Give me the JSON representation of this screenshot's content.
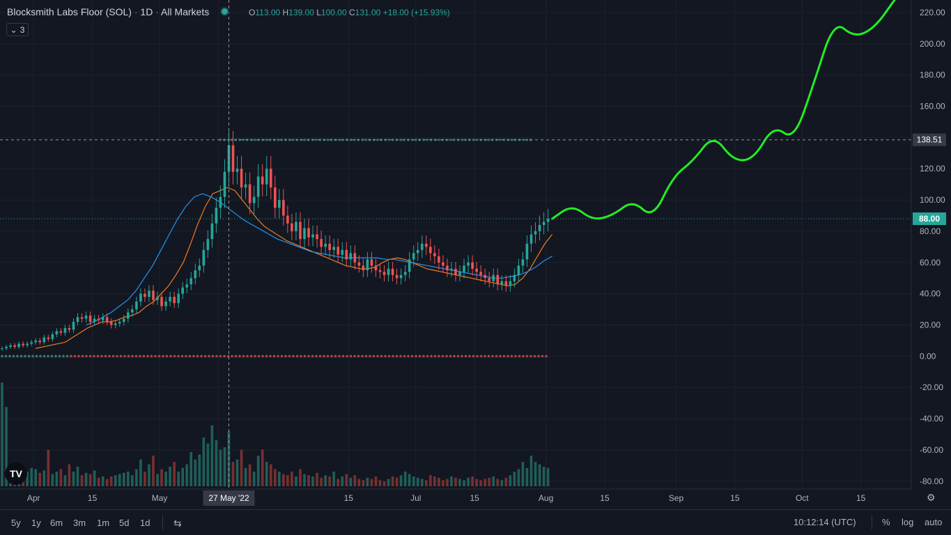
{
  "legend": {
    "title": "Blocksmith Labs Floor (SOL)",
    "interval": "1D",
    "source": "All Markets",
    "o_label": "O",
    "o": "113.00",
    "h_label": "H",
    "h": "139.00",
    "l_label": "L",
    "l": "100.00",
    "c_label": "C",
    "c": "131.00",
    "change": "+18.00 (+15.93%)",
    "indicator_count": "3"
  },
  "price_labels": {
    "crosshair": "138.51",
    "last": "88.00"
  },
  "crosshair_date": "27 May '22",
  "timeframes": [
    "5y",
    "1y",
    "6m",
    "3m",
    "1m",
    "5d",
    "1d"
  ],
  "status": {
    "clock": "10:12:14 (UTC)",
    "percent": "%",
    "log": "log",
    "auto": "auto"
  },
  "colors": {
    "up": "#26a69a",
    "down": "#ef5350",
    "ma_fast": "#f57c1f",
    "ma_slow": "#2196f3",
    "projection": "#22ee22",
    "background": "#131722"
  },
  "chart_data": {
    "type": "candlestick",
    "title": "Blocksmith Labs Floor (SOL)",
    "ylim": [
      -85,
      228
    ],
    "y_ticks": [
      "220.00",
      "200.00",
      "180.00",
      "160.00",
      "140.00",
      "120.00",
      "100.00",
      "80.00",
      "60.00",
      "40.00",
      "20.00",
      "0.00",
      "-20.00",
      "-40.00",
      "-60.00",
      "-80.00"
    ],
    "y_tick_values": [
      220,
      200,
      180,
      160,
      140,
      120,
      100,
      80,
      60,
      40,
      20,
      0,
      -20,
      -40,
      -60,
      -80
    ],
    "x_range": [
      "2022-03-24",
      "2022-10-27"
    ],
    "x_ticks": [
      {
        "date": "2022-04-01",
        "label": "Apr"
      },
      {
        "date": "2022-04-15",
        "label": "15"
      },
      {
        "date": "2022-05-01",
        "label": "May"
      },
      {
        "date": "2022-05-15",
        "label": "15"
      },
      {
        "date": "2022-06-15",
        "label": "15"
      },
      {
        "date": "2022-07-01",
        "label": "Jul"
      },
      {
        "date": "2022-07-15",
        "label": "15"
      },
      {
        "date": "2022-08-01",
        "label": "Aug"
      },
      {
        "date": "2022-08-15",
        "label": "15"
      },
      {
        "date": "2022-09-01",
        "label": "Sep"
      },
      {
        "date": "2022-09-15",
        "label": "15"
      },
      {
        "date": "2022-10-01",
        "label": "Oct"
      },
      {
        "date": "2022-10-15",
        "label": "15"
      }
    ],
    "start_date": "2022-03-24",
    "close_first": 5,
    "closes": [
      5,
      6,
      7,
      6,
      8,
      7,
      8,
      9,
      10,
      9,
      12,
      11,
      14,
      16,
      15,
      18,
      17,
      22,
      25,
      24,
      26,
      22,
      24,
      23,
      25,
      22,
      20,
      21,
      22,
      24,
      28,
      30,
      35,
      40,
      38,
      42,
      36,
      38,
      32,
      35,
      38,
      34,
      40,
      44,
      46,
      50,
      55,
      58,
      68,
      75,
      85,
      95,
      102,
      118,
      135,
      118,
      120,
      108,
      110,
      98,
      102,
      115,
      110,
      120,
      108,
      95,
      100,
      90,
      85,
      80,
      86,
      75,
      82,
      76,
      78,
      75,
      70,
      72,
      68,
      70,
      65,
      68,
      62,
      66,
      60,
      58,
      55,
      62,
      58,
      55,
      54,
      52,
      56,
      52,
      50,
      52,
      54,
      62,
      66,
      68,
      72,
      70,
      66,
      64,
      60,
      58,
      55,
      56,
      52,
      54,
      58,
      60,
      56,
      54,
      52,
      50,
      48,
      52,
      46,
      48,
      45,
      48,
      52,
      58,
      62,
      72,
      78,
      80,
      84,
      86,
      88
    ],
    "volume": [
      85,
      65,
      12,
      8,
      10,
      9,
      12,
      15,
      14,
      11,
      13,
      30,
      10,
      12,
      14,
      9,
      18,
      12,
      16,
      9,
      11,
      10,
      13,
      7,
      8,
      6,
      8,
      9,
      10,
      11,
      12,
      9,
      14,
      22,
      12,
      18,
      25,
      10,
      14,
      12,
      16,
      20,
      12,
      15,
      18,
      28,
      22,
      26,
      40,
      35,
      50,
      38,
      30,
      32,
      45,
      20,
      22,
      30,
      15,
      18,
      12,
      25,
      30,
      20,
      18,
      14,
      12,
      10,
      9,
      12,
      8,
      14,
      10,
      9,
      8,
      11,
      7,
      9,
      8,
      12,
      6,
      8,
      10,
      7,
      9,
      6,
      5,
      7,
      6,
      8,
      5,
      4,
      6,
      8,
      7,
      9,
      12,
      10,
      8,
      7,
      6,
      5,
      9,
      8,
      7,
      5,
      6,
      8,
      7,
      6,
      5,
      7,
      8,
      6,
      5,
      6,
      7,
      8,
      6,
      5,
      7,
      9,
      12,
      14,
      20,
      15,
      25,
      20,
      18,
      16,
      15
    ],
    "ma_fast": [
      5,
      6,
      7,
      8,
      9,
      12,
      15,
      18,
      20,
      22,
      22,
      23,
      25,
      26,
      28,
      32,
      35,
      40,
      45,
      52,
      60,
      72,
      85,
      96,
      104,
      106,
      108,
      106,
      100,
      94,
      88,
      83,
      80,
      77,
      74,
      72,
      70,
      68,
      66,
      64,
      62,
      60,
      58,
      57,
      56,
      56,
      57,
      60,
      62,
      63,
      62,
      60,
      58,
      56,
      55,
      54,
      53,
      52,
      51,
      50,
      49,
      48,
      47,
      46,
      45,
      46,
      50,
      56,
      64,
      72,
      78
    ],
    "ma_slow": [
      20,
      22,
      25,
      28,
      32,
      36,
      42,
      50,
      58,
      68,
      78,
      88,
      96,
      102,
      104,
      102,
      99,
      95,
      91,
      87,
      84,
      81,
      78,
      75,
      73,
      71,
      69,
      67,
      66,
      65,
      64,
      63,
      63,
      63,
      63,
      63,
      62,
      62,
      61,
      60,
      59,
      58,
      57,
      56,
      55,
      54,
      53,
      52,
      51,
      50,
      50,
      51,
      52,
      54,
      57,
      61,
      64
    ],
    "crosshair_level": 138.51,
    "last_price": 88.0,
    "projection_points": [
      88,
      97,
      87,
      90,
      100,
      88,
      115,
      125,
      142,
      125,
      126,
      148,
      138,
      175,
      215,
      204,
      210,
      228
    ]
  }
}
